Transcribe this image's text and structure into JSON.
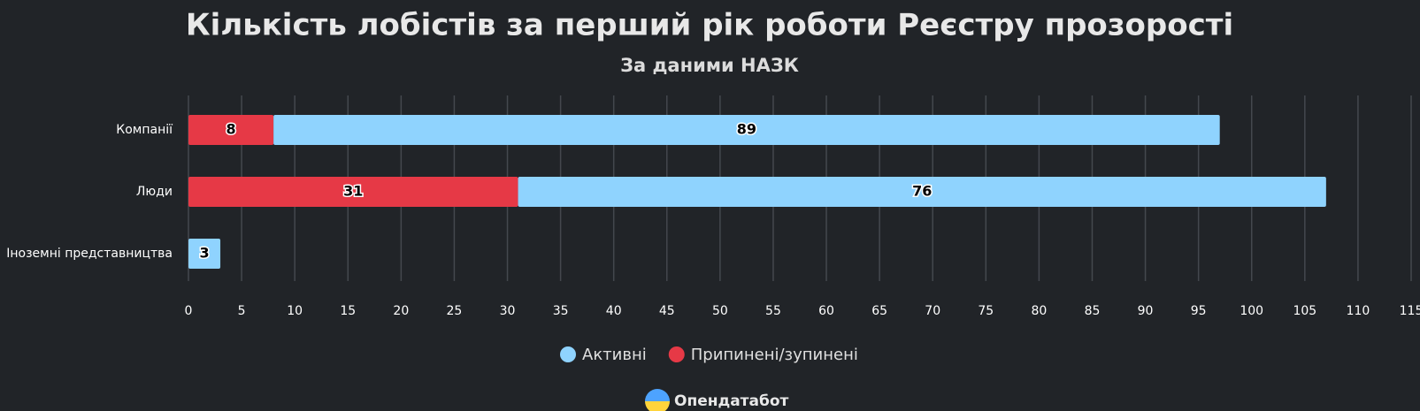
{
  "chart_data": {
    "type": "bar",
    "orientation": "horizontal",
    "stacked": true,
    "title": "Кількість лобістів за перший рік роботи Реєстру прозорості",
    "subtitle": "За даними НАЗК",
    "categories": [
      "Компанії",
      "Люди",
      "Іноземні представництва"
    ],
    "series": [
      {
        "name": "Активні",
        "color": "#8fd3fe",
        "values": [
          89,
          76,
          3
        ]
      },
      {
        "name": "Припинені/зупинені",
        "color": "#e63946",
        "values": [
          8,
          31,
          null
        ]
      }
    ],
    "xlim": [
      0,
      115
    ],
    "xticks": [
      0,
      5,
      10,
      15,
      20,
      25,
      30,
      35,
      40,
      45,
      50,
      55,
      60,
      65,
      70,
      75,
      80,
      85,
      90,
      95,
      100,
      105,
      110,
      115
    ],
    "grid": true,
    "legend": "bottom",
    "footer": "Опендатабот"
  }
}
